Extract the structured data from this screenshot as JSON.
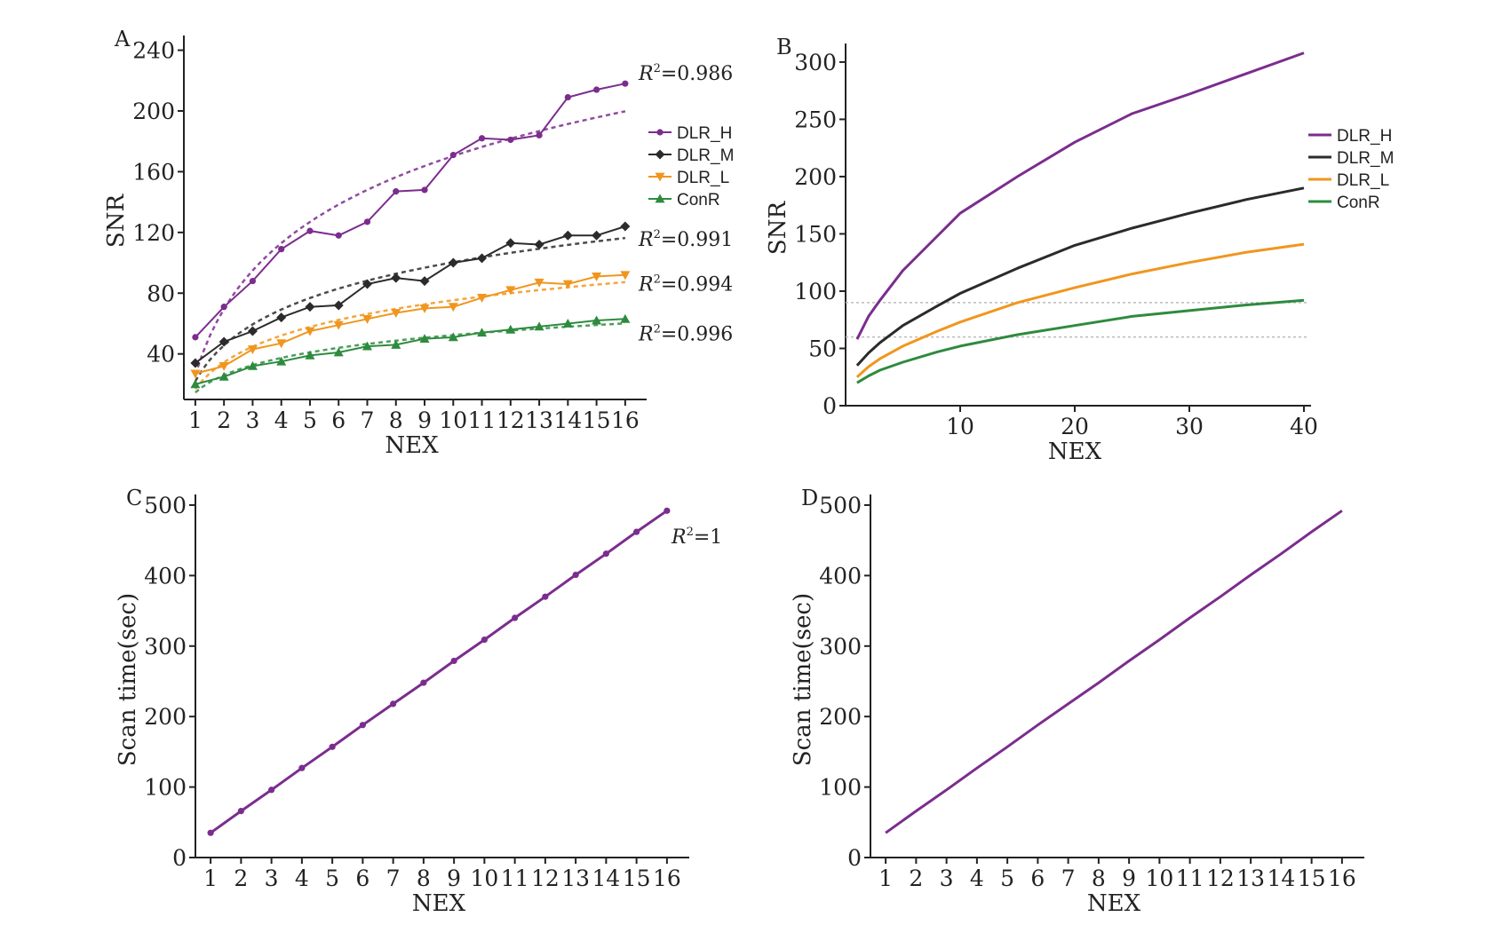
{
  "colors": {
    "DLR_H": "#7B2D8E",
    "DLR_M": "#2B2B2B",
    "DLR_L": "#F0961E",
    "ConR": "#2E8B3E",
    "axis": "#222222",
    "reference_line": "#BBBBBB"
  },
  "chart_data": [
    {
      "panel": "A",
      "type": "line",
      "xlabel": "NEX",
      "ylabel": "SNR",
      "x": [
        1,
        2,
        3,
        4,
        5,
        6,
        7,
        8,
        9,
        10,
        11,
        12,
        13,
        14,
        15,
        16
      ],
      "xlim": [
        0.6,
        16.5
      ],
      "ylim": [
        10,
        245
      ],
      "yticks": [
        40,
        80,
        120,
        160,
        200,
        240
      ],
      "grid": false,
      "legend_position": "right",
      "series": [
        {
          "name": "DLR_H",
          "marker": "circle",
          "r2": "0.986",
          "values": [
            51,
            71,
            88,
            109,
            121,
            118,
            127,
            147,
            148,
            171,
            182,
            181,
            184,
            209,
            214,
            218
          ]
        },
        {
          "name": "DLR_M",
          "marker": "diamond",
          "r2": "0.991",
          "values": [
            34,
            48,
            55,
            64,
            71,
            72,
            86,
            90,
            88,
            100,
            103,
            113,
            112,
            118,
            118,
            124
          ]
        },
        {
          "name": "DLR_L",
          "marker": "triangle-down",
          "r2": "0.994",
          "values": [
            27,
            32,
            43,
            47,
            55,
            59,
            63,
            67,
            70,
            71,
            77,
            82,
            87,
            86,
            91,
            92
          ]
        },
        {
          "name": "ConR",
          "marker": "triangle-up",
          "r2": "0.996",
          "values": [
            20,
            25,
            32,
            35,
            39,
            41,
            45,
            46,
            50,
            51,
            54,
            56,
            58,
            60,
            62,
            63
          ]
        }
      ]
    },
    {
      "panel": "B",
      "type": "line",
      "xlabel": "NEX",
      "ylabel": "SNR",
      "xlim": [
        0,
        40
      ],
      "ylim": [
        0,
        310
      ],
      "xticks": [
        10,
        20,
        30,
        40
      ],
      "yticks": [
        0,
        50,
        100,
        150,
        200,
        250,
        300
      ],
      "reference_lines_y": [
        60,
        90
      ],
      "grid": false,
      "legend_position": "right",
      "series": [
        {
          "name": "DLR_H",
          "x": [
            1,
            2,
            3,
            5,
            8,
            10,
            15,
            20,
            25,
            30,
            35,
            40
          ],
          "values": [
            58,
            78,
            92,
            118,
            148,
            168,
            200,
            230,
            255,
            272,
            290,
            308
          ]
        },
        {
          "name": "DLR_M",
          "x": [
            1,
            2,
            3,
            5,
            8,
            10,
            15,
            20,
            25,
            30,
            35,
            40
          ],
          "values": [
            35,
            46,
            55,
            70,
            87,
            98,
            120,
            140,
            155,
            168,
            180,
            190
          ]
        },
        {
          "name": "DLR_L",
          "x": [
            1,
            2,
            3,
            5,
            8,
            10,
            15,
            20,
            25,
            30,
            35,
            40
          ],
          "values": [
            25,
            34,
            41,
            52,
            65,
            73,
            90,
            103,
            115,
            125,
            134,
            141
          ]
        },
        {
          "name": "ConR",
          "x": [
            1,
            2,
            3,
            5,
            8,
            10,
            15,
            20,
            25,
            30,
            35,
            40
          ],
          "values": [
            20,
            26,
            31,
            38,
            47,
            52,
            62,
            70,
            78,
            83,
            88,
            92
          ]
        }
      ]
    },
    {
      "panel": "C",
      "type": "line",
      "xlabel": "NEX",
      "ylabel": "Scan time(sec)",
      "x": [
        1,
        2,
        3,
        4,
        5,
        6,
        7,
        8,
        9,
        10,
        11,
        12,
        13,
        14,
        15,
        16
      ],
      "xlim": [
        0.5,
        16.5
      ],
      "ylim": [
        0,
        505
      ],
      "yticks": [
        0,
        100,
        200,
        300,
        400,
        500
      ],
      "grid": false,
      "r2": "1",
      "series": [
        {
          "name": "",
          "marker": "circle",
          "values": [
            35,
            66,
            96,
            127,
            157,
            188,
            218,
            248,
            279,
            309,
            340,
            370,
            401,
            431,
            462,
            492
          ]
        }
      ]
    },
    {
      "panel": "D",
      "type": "line",
      "xlabel": "NEX",
      "ylabel": "Scan time(sec)",
      "x": [
        1,
        2,
        3,
        4,
        5,
        6,
        7,
        8,
        9,
        10,
        11,
        12,
        13,
        14,
        15,
        16
      ],
      "xlim": [
        0.5,
        16.5
      ],
      "ylim": [
        0,
        505
      ],
      "yticks": [
        0,
        100,
        200,
        300,
        400,
        500
      ],
      "grid": false,
      "series": [
        {
          "name": "",
          "marker": "none",
          "values": [
            35,
            66,
            96,
            127,
            157,
            188,
            218,
            248,
            279,
            309,
            340,
            370,
            401,
            431,
            462,
            492
          ]
        }
      ]
    }
  ]
}
